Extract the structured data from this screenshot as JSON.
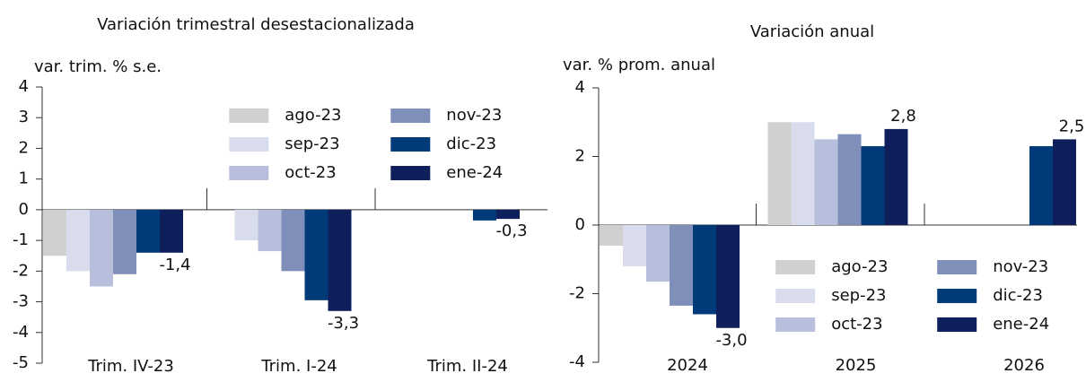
{
  "chart_data": [
    {
      "type": "bar",
      "title": "Variación trimestral desestacionalizada",
      "y_label": "var. trim. % s.e.",
      "categories": [
        "Trim. IV-23",
        "Trim. I-24",
        "Trim. II-24"
      ],
      "ylim": [
        -5,
        4
      ],
      "yticks": [
        -5,
        -4,
        -3,
        -2,
        -1,
        0,
        1,
        2,
        3,
        4
      ],
      "legend_position": "upper-right",
      "series": [
        {
          "name": "ago-23",
          "color": "#d0d0d0",
          "values": [
            -1.5,
            null,
            null
          ]
        },
        {
          "name": "sep-23",
          "color": "#d9dcec",
          "values": [
            -2.0,
            -1.0,
            null
          ]
        },
        {
          "name": "oct-23",
          "color": "#b8bfdc",
          "values": [
            -2.5,
            -1.35,
            null
          ]
        },
        {
          "name": "nov-23",
          "color": "#7f8fba",
          "values": [
            -2.1,
            -2.0,
            null
          ]
        },
        {
          "name": "dic-23",
          "color": "#003a78",
          "values": [
            -1.4,
            -2.95,
            -0.35
          ]
        },
        {
          "name": "ene-24",
          "color": "#0f1f5c",
          "values": [
            -1.4,
            -3.3,
            -0.3
          ],
          "value_labels": [
            "-1,4",
            "-3,3",
            "-0,3"
          ],
          "label_color": "#8b1538"
        }
      ]
    },
    {
      "type": "bar",
      "title": "Variación anual",
      "y_label": "var. % prom. anual",
      "categories": [
        "2024",
        "2025",
        "2026"
      ],
      "ylim": [
        -4,
        4
      ],
      "yticks": [
        -4,
        -2,
        0,
        2,
        4
      ],
      "legend_position": "lower-right",
      "series": [
        {
          "name": "ago-23",
          "color": "#d0d0d0",
          "values": [
            -0.6,
            3.0,
            null
          ]
        },
        {
          "name": "sep-23",
          "color": "#d9dcec",
          "values": [
            -1.2,
            3.0,
            null
          ]
        },
        {
          "name": "oct-23",
          "color": "#b8bfdc",
          "values": [
            -1.65,
            2.5,
            null
          ]
        },
        {
          "name": "nov-23",
          "color": "#7f8fba",
          "values": [
            -2.35,
            2.65,
            null
          ]
        },
        {
          "name": "dic-23",
          "color": "#003a78",
          "values": [
            -2.6,
            2.3,
            2.3
          ]
        },
        {
          "name": "ene-24",
          "color": "#0f1f5c",
          "values": [
            -3.0,
            2.8,
            2.5
          ],
          "value_labels": [
            "-3,0",
            "2,8",
            "2,5"
          ],
          "label_color": "#8b1538"
        }
      ]
    }
  ]
}
